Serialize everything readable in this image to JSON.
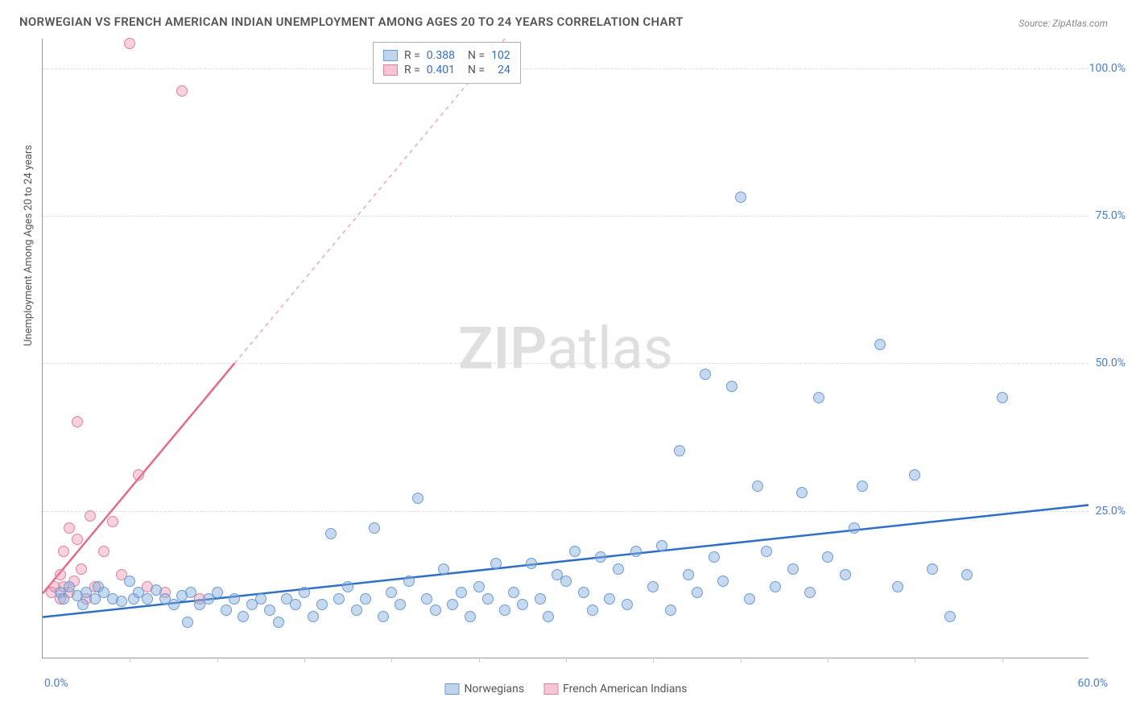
{
  "meta": {
    "title": "NORWEGIAN VS FRENCH AMERICAN INDIAN UNEMPLOYMENT AMONG AGES 20 TO 24 YEARS CORRELATION CHART",
    "source": "Source: ZipAtlas.com",
    "watermark_bold": "ZIP",
    "watermark_light": "atlas"
  },
  "chart": {
    "type": "scatter",
    "ylabel": "Unemployment Among Ages 20 to 24 years",
    "xlim": [
      0,
      60
    ],
    "ylim": [
      0,
      105
    ],
    "y_ticks": [
      25.0,
      50.0,
      75.0,
      100.0
    ],
    "y_tick_labels": [
      "25.0%",
      "50.0%",
      "75.0%",
      "100.0%"
    ],
    "x_tick_left": "0.0%",
    "x_tick_right": "60.0%",
    "minor_x_ticks": [
      5,
      10,
      15,
      20,
      25,
      30,
      35,
      40,
      45,
      50,
      55
    ],
    "background_color": "#ffffff",
    "grid_color": "#dddddd",
    "marker_radius": 7,
    "series_blue": {
      "label": "Norwegians",
      "color_fill": "#82aadc",
      "color_stroke": "#6a9cd4",
      "R": "0.388",
      "N": "102",
      "trend_line": {
        "x1": 0,
        "y1": 7,
        "x2": 60,
        "y2": 26,
        "stroke": "#2f6fc4",
        "width": 2.5
      }
    },
    "series_pink": {
      "label": "French American Indians",
      "color_fill": "#eb8ca5",
      "color_stroke": "#e0819e",
      "R": "0.401",
      "N": "24",
      "trend_line_solid": {
        "x1": 0,
        "y1": 11,
        "x2": 11,
        "y2": 50,
        "stroke": "#e06b8a",
        "width": 2.5
      },
      "trend_line_dashed": {
        "x1": 11,
        "y1": 50,
        "x2": 26.5,
        "y2": 105,
        "stroke": "#e8aabb",
        "width": 1.5,
        "dash": "5,5"
      }
    },
    "points_blue": [
      [
        1,
        11
      ],
      [
        1.2,
        10
      ],
      [
        1.5,
        12
      ],
      [
        2,
        10.5
      ],
      [
        2.3,
        9
      ],
      [
        2.5,
        11
      ],
      [
        3,
        10
      ],
      [
        3.2,
        12
      ],
      [
        3.5,
        11
      ],
      [
        4,
        10
      ],
      [
        4.5,
        9.5
      ],
      [
        5,
        13
      ],
      [
        5.2,
        10
      ],
      [
        5.5,
        11
      ],
      [
        6,
        10
      ],
      [
        6.5,
        11.5
      ],
      [
        7,
        10
      ],
      [
        7.5,
        9
      ],
      [
        8,
        10.5
      ],
      [
        8.3,
        6
      ],
      [
        8.5,
        11
      ],
      [
        9,
        9
      ],
      [
        9.5,
        10
      ],
      [
        10,
        11
      ],
      [
        10.5,
        8
      ],
      [
        11,
        10
      ],
      [
        11.5,
        7
      ],
      [
        12,
        9
      ],
      [
        12.5,
        10
      ],
      [
        13,
        8
      ],
      [
        13.5,
        6
      ],
      [
        14,
        10
      ],
      [
        14.5,
        9
      ],
      [
        15,
        11
      ],
      [
        15.5,
        7
      ],
      [
        16,
        9
      ],
      [
        16.5,
        21
      ],
      [
        17,
        10
      ],
      [
        17.5,
        12
      ],
      [
        18,
        8
      ],
      [
        18.5,
        10
      ],
      [
        19,
        22
      ],
      [
        19.5,
        7
      ],
      [
        20,
        11
      ],
      [
        20.5,
        9
      ],
      [
        21,
        13
      ],
      [
        21.5,
        27
      ],
      [
        22,
        10
      ],
      [
        22.5,
        8
      ],
      [
        23,
        15
      ],
      [
        23.5,
        9
      ],
      [
        24,
        11
      ],
      [
        24.5,
        7
      ],
      [
        25,
        12
      ],
      [
        25.5,
        10
      ],
      [
        26,
        16
      ],
      [
        26.5,
        8
      ],
      [
        27,
        11
      ],
      [
        27.5,
        9
      ],
      [
        28,
        16
      ],
      [
        28.5,
        10
      ],
      [
        29,
        7
      ],
      [
        29.5,
        14
      ],
      [
        30,
        13
      ],
      [
        30.5,
        18
      ],
      [
        31,
        11
      ],
      [
        31.5,
        8
      ],
      [
        32,
        17
      ],
      [
        32.5,
        10
      ],
      [
        33,
        15
      ],
      [
        33.5,
        9
      ],
      [
        34,
        18
      ],
      [
        35,
        12
      ],
      [
        35.5,
        19
      ],
      [
        36,
        8
      ],
      [
        36.5,
        35
      ],
      [
        37,
        14
      ],
      [
        37.5,
        11
      ],
      [
        38,
        48
      ],
      [
        38.5,
        17
      ],
      [
        39,
        13
      ],
      [
        39.5,
        46
      ],
      [
        40,
        78
      ],
      [
        40.5,
        10
      ],
      [
        41,
        29
      ],
      [
        41.5,
        18
      ],
      [
        42,
        12
      ],
      [
        43,
        15
      ],
      [
        43.5,
        28
      ],
      [
        44,
        11
      ],
      [
        44.5,
        44
      ],
      [
        45,
        17
      ],
      [
        46,
        14
      ],
      [
        46.5,
        22
      ],
      [
        47,
        29
      ],
      [
        48,
        53
      ],
      [
        49,
        12
      ],
      [
        50,
        31
      ],
      [
        51,
        15
      ],
      [
        52,
        7
      ],
      [
        53,
        14
      ],
      [
        55,
        44
      ]
    ],
    "points_pink": [
      [
        0.5,
        11
      ],
      [
        0.7,
        12
      ],
      [
        1,
        10
      ],
      [
        1,
        14
      ],
      [
        1.2,
        18
      ],
      [
        1.2,
        12
      ],
      [
        1.5,
        22
      ],
      [
        1.5,
        11
      ],
      [
        1.8,
        13
      ],
      [
        2,
        20
      ],
      [
        2,
        40
      ],
      [
        2.2,
        15
      ],
      [
        2.5,
        10
      ],
      [
        2.7,
        24
      ],
      [
        3,
        12
      ],
      [
        3.5,
        18
      ],
      [
        4,
        23
      ],
      [
        4.5,
        14
      ],
      [
        5,
        104
      ],
      [
        5.5,
        31
      ],
      [
        6,
        12
      ],
      [
        7,
        11
      ],
      [
        8,
        96
      ],
      [
        9,
        10
      ]
    ]
  }
}
